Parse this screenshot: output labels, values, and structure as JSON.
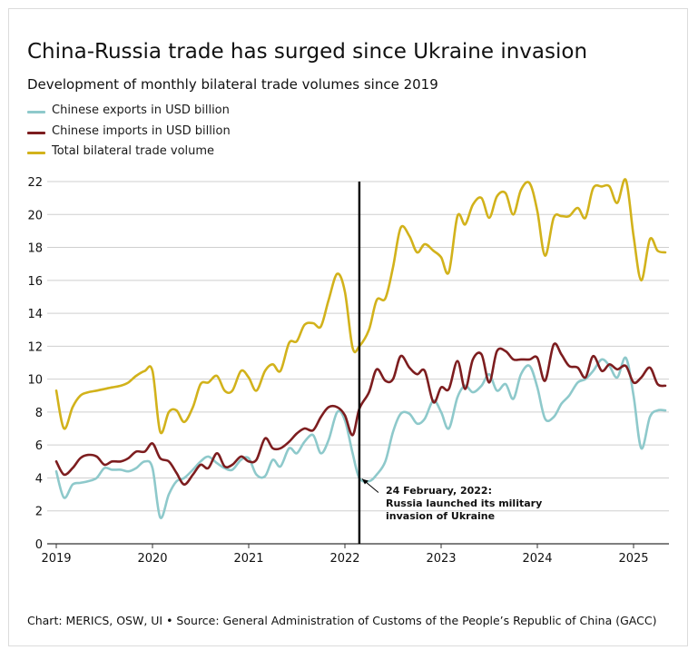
{
  "title": "China-Russia trade has surged since Ukraine invasion",
  "subtitle": "Development of monthly bilateral trade volumes since 2019",
  "source": "Chart: MERICS, OSW, UI • Source: General Administration of Customs of the People’s Republic of China (GACC)",
  "legend": [
    {
      "label": "Chinese exports in USD billion",
      "color": "#8ec9cb"
    },
    {
      "label": "Chinese imports in USD billion",
      "color": "#7d1d1f"
    },
    {
      "label": "Total bilateral trade volume",
      "color": "#d2b21b"
    }
  ],
  "annotation": {
    "lines": [
      "24 February, 2022:",
      "Russia launched its military",
      "invasion of Ukraine"
    ],
    "x": 2022.15,
    "point_y": 4.0
  },
  "chart_data": {
    "type": "line",
    "ylim": [
      0,
      22
    ],
    "xlim": [
      2019,
      2025.42
    ],
    "y_ticks": [
      0,
      2,
      4,
      6,
      8,
      10,
      12,
      14,
      16,
      18,
      20,
      22
    ],
    "x_ticks": [
      2019,
      2020,
      2021,
      2022,
      2023,
      2024,
      2025
    ],
    "grid": "horizontal",
    "event_line_x": 2022.15,
    "series": [
      {
        "name": "Chinese exports in USD billion",
        "color": "#8ec9cb",
        "points": [
          [
            2019.0,
            4.4
          ],
          [
            2019.08,
            2.8
          ],
          [
            2019.17,
            3.6
          ],
          [
            2019.25,
            3.7
          ],
          [
            2019.33,
            3.8
          ],
          [
            2019.42,
            4.0
          ],
          [
            2019.5,
            4.6
          ],
          [
            2019.58,
            4.5
          ],
          [
            2019.67,
            4.5
          ],
          [
            2019.75,
            4.4
          ],
          [
            2019.83,
            4.6
          ],
          [
            2019.92,
            5.0
          ],
          [
            2020.0,
            4.6
          ],
          [
            2020.08,
            1.6
          ],
          [
            2020.17,
            3.0
          ],
          [
            2020.25,
            3.8
          ],
          [
            2020.33,
            4.0
          ],
          [
            2020.42,
            4.5
          ],
          [
            2020.5,
            5.0
          ],
          [
            2020.58,
            5.3
          ],
          [
            2020.67,
            4.9
          ],
          [
            2020.75,
            4.6
          ],
          [
            2020.83,
            4.5
          ],
          [
            2020.92,
            5.1
          ],
          [
            2021.0,
            5.2
          ],
          [
            2021.08,
            4.2
          ],
          [
            2021.17,
            4.1
          ],
          [
            2021.25,
            5.1
          ],
          [
            2021.33,
            4.7
          ],
          [
            2021.42,
            5.8
          ],
          [
            2021.5,
            5.5
          ],
          [
            2021.58,
            6.2
          ],
          [
            2021.67,
            6.6
          ],
          [
            2021.75,
            5.5
          ],
          [
            2021.83,
            6.3
          ],
          [
            2021.92,
            8.0
          ],
          [
            2022.0,
            7.5
          ],
          [
            2022.08,
            5.5
          ],
          [
            2022.15,
            4.0
          ],
          [
            2022.25,
            3.8
          ],
          [
            2022.33,
            4.2
          ],
          [
            2022.42,
            5.0
          ],
          [
            2022.5,
            6.8
          ],
          [
            2022.58,
            7.9
          ],
          [
            2022.67,
            7.9
          ],
          [
            2022.75,
            7.3
          ],
          [
            2022.83,
            7.6
          ],
          [
            2022.92,
            8.7
          ],
          [
            2023.0,
            8.0
          ],
          [
            2023.08,
            7.0
          ],
          [
            2023.17,
            8.9
          ],
          [
            2023.25,
            9.6
          ],
          [
            2023.33,
            9.2
          ],
          [
            2023.42,
            9.6
          ],
          [
            2023.5,
            10.3
          ],
          [
            2023.58,
            9.3
          ],
          [
            2023.67,
            9.7
          ],
          [
            2023.75,
            8.8
          ],
          [
            2023.83,
            10.3
          ],
          [
            2023.92,
            10.8
          ],
          [
            2024.0,
            9.5
          ],
          [
            2024.08,
            7.6
          ],
          [
            2024.17,
            7.7
          ],
          [
            2024.25,
            8.5
          ],
          [
            2024.33,
            9.0
          ],
          [
            2024.42,
            9.8
          ],
          [
            2024.5,
            10.0
          ],
          [
            2024.58,
            10.5
          ],
          [
            2024.67,
            11.2
          ],
          [
            2024.75,
            10.8
          ],
          [
            2024.83,
            10.1
          ],
          [
            2024.92,
            11.3
          ],
          [
            2025.0,
            9.0
          ],
          [
            2025.08,
            5.8
          ],
          [
            2025.17,
            7.7
          ],
          [
            2025.25,
            8.1
          ],
          [
            2025.33,
            8.1
          ]
        ]
      },
      {
        "name": "Chinese imports in USD billion",
        "color": "#7d1d1f",
        "points": [
          [
            2019.0,
            5.0
          ],
          [
            2019.08,
            4.2
          ],
          [
            2019.17,
            4.6
          ],
          [
            2019.25,
            5.2
          ],
          [
            2019.33,
            5.4
          ],
          [
            2019.42,
            5.3
          ],
          [
            2019.5,
            4.8
          ],
          [
            2019.58,
            5.0
          ],
          [
            2019.67,
            5.0
          ],
          [
            2019.75,
            5.2
          ],
          [
            2019.83,
            5.6
          ],
          [
            2019.92,
            5.6
          ],
          [
            2020.0,
            6.1
          ],
          [
            2020.08,
            5.2
          ],
          [
            2020.17,
            5.0
          ],
          [
            2020.25,
            4.3
          ],
          [
            2020.33,
            3.6
          ],
          [
            2020.42,
            4.2
          ],
          [
            2020.5,
            4.8
          ],
          [
            2020.58,
            4.6
          ],
          [
            2020.67,
            5.5
          ],
          [
            2020.75,
            4.7
          ],
          [
            2020.83,
            4.8
          ],
          [
            2020.92,
            5.3
          ],
          [
            2021.0,
            5.0
          ],
          [
            2021.08,
            5.1
          ],
          [
            2021.17,
            6.4
          ],
          [
            2021.25,
            5.8
          ],
          [
            2021.33,
            5.8
          ],
          [
            2021.42,
            6.2
          ],
          [
            2021.5,
            6.7
          ],
          [
            2021.58,
            7.0
          ],
          [
            2021.67,
            6.9
          ],
          [
            2021.75,
            7.7
          ],
          [
            2021.83,
            8.3
          ],
          [
            2021.92,
            8.3
          ],
          [
            2022.0,
            7.8
          ],
          [
            2022.08,
            6.6
          ],
          [
            2022.15,
            8.2
          ],
          [
            2022.25,
            9.2
          ],
          [
            2022.33,
            10.6
          ],
          [
            2022.42,
            9.9
          ],
          [
            2022.5,
            10.0
          ],
          [
            2022.58,
            11.4
          ],
          [
            2022.67,
            10.7
          ],
          [
            2022.75,
            10.3
          ],
          [
            2022.83,
            10.5
          ],
          [
            2022.92,
            8.6
          ],
          [
            2023.0,
            9.5
          ],
          [
            2023.08,
            9.4
          ],
          [
            2023.17,
            11.1
          ],
          [
            2023.25,
            9.4
          ],
          [
            2023.33,
            11.2
          ],
          [
            2023.42,
            11.5
          ],
          [
            2023.5,
            9.8
          ],
          [
            2023.58,
            11.7
          ],
          [
            2023.67,
            11.7
          ],
          [
            2023.75,
            11.2
          ],
          [
            2023.83,
            11.2
          ],
          [
            2023.92,
            11.2
          ],
          [
            2024.0,
            11.3
          ],
          [
            2024.08,
            9.9
          ],
          [
            2024.17,
            12.1
          ],
          [
            2024.25,
            11.5
          ],
          [
            2024.33,
            10.8
          ],
          [
            2024.42,
            10.7
          ],
          [
            2024.5,
            10.1
          ],
          [
            2024.58,
            11.4
          ],
          [
            2024.67,
            10.5
          ],
          [
            2024.75,
            10.9
          ],
          [
            2024.83,
            10.6
          ],
          [
            2024.92,
            10.8
          ],
          [
            2025.0,
            9.8
          ],
          [
            2025.08,
            10.1
          ],
          [
            2025.17,
            10.7
          ],
          [
            2025.25,
            9.7
          ],
          [
            2025.33,
            9.6
          ]
        ]
      },
      {
        "name": "Total bilateral trade volume",
        "color": "#d2b21b",
        "points": [
          [
            2019.0,
            9.3
          ],
          [
            2019.08,
            7.0
          ],
          [
            2019.17,
            8.3
          ],
          [
            2019.25,
            9.0
          ],
          [
            2019.33,
            9.2
          ],
          [
            2019.42,
            9.3
          ],
          [
            2019.5,
            9.4
          ],
          [
            2019.58,
            9.5
          ],
          [
            2019.67,
            9.6
          ],
          [
            2019.75,
            9.8
          ],
          [
            2019.83,
            10.2
          ],
          [
            2019.92,
            10.5
          ],
          [
            2020.0,
            10.5
          ],
          [
            2020.08,
            6.8
          ],
          [
            2020.17,
            8.0
          ],
          [
            2020.25,
            8.1
          ],
          [
            2020.33,
            7.4
          ],
          [
            2020.42,
            8.3
          ],
          [
            2020.5,
            9.7
          ],
          [
            2020.58,
            9.8
          ],
          [
            2020.67,
            10.2
          ],
          [
            2020.75,
            9.3
          ],
          [
            2020.83,
            9.3
          ],
          [
            2020.92,
            10.5
          ],
          [
            2021.0,
            10.1
          ],
          [
            2021.08,
            9.3
          ],
          [
            2021.17,
            10.5
          ],
          [
            2021.25,
            10.9
          ],
          [
            2021.33,
            10.5
          ],
          [
            2021.42,
            12.2
          ],
          [
            2021.5,
            12.3
          ],
          [
            2021.58,
            13.3
          ],
          [
            2021.67,
            13.4
          ],
          [
            2021.75,
            13.2
          ],
          [
            2021.83,
            14.8
          ],
          [
            2021.92,
            16.4
          ],
          [
            2022.0,
            15.3
          ],
          [
            2022.08,
            11.9
          ],
          [
            2022.15,
            12.0
          ],
          [
            2022.25,
            13.0
          ],
          [
            2022.33,
            14.8
          ],
          [
            2022.42,
            14.9
          ],
          [
            2022.5,
            16.8
          ],
          [
            2022.58,
            19.2
          ],
          [
            2022.67,
            18.7
          ],
          [
            2022.75,
            17.7
          ],
          [
            2022.83,
            18.2
          ],
          [
            2022.92,
            17.8
          ],
          [
            2023.0,
            17.4
          ],
          [
            2023.08,
            16.5
          ],
          [
            2023.17,
            19.9
          ],
          [
            2023.25,
            19.4
          ],
          [
            2023.33,
            20.6
          ],
          [
            2023.42,
            21.0
          ],
          [
            2023.5,
            19.8
          ],
          [
            2023.58,
            21.1
          ],
          [
            2023.67,
            21.3
          ],
          [
            2023.75,
            20.0
          ],
          [
            2023.83,
            21.5
          ],
          [
            2023.92,
            21.9
          ],
          [
            2024.0,
            20.2
          ],
          [
            2024.08,
            17.5
          ],
          [
            2024.17,
            19.8
          ],
          [
            2024.25,
            19.9
          ],
          [
            2024.33,
            19.9
          ],
          [
            2024.42,
            20.4
          ],
          [
            2024.5,
            19.8
          ],
          [
            2024.58,
            21.6
          ],
          [
            2024.67,
            21.7
          ],
          [
            2024.75,
            21.7
          ],
          [
            2024.83,
            20.7
          ],
          [
            2024.92,
            22.1
          ],
          [
            2025.0,
            18.7
          ],
          [
            2025.08,
            16.0
          ],
          [
            2025.17,
            18.5
          ],
          [
            2025.25,
            17.8
          ],
          [
            2025.33,
            17.7
          ]
        ]
      }
    ]
  }
}
